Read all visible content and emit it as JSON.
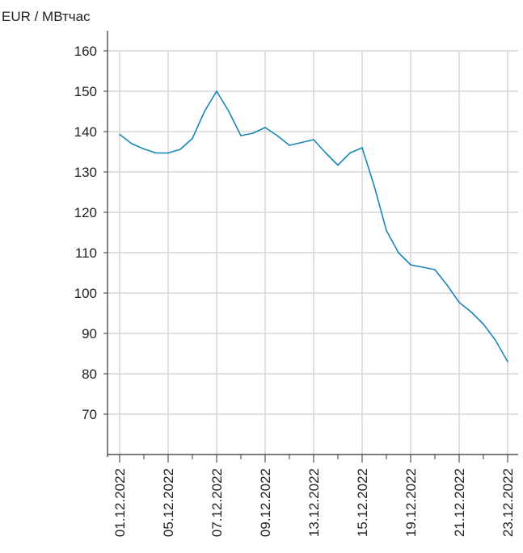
{
  "chart_data": {
    "type": "line",
    "ylabel": "EUR / МВтчас",
    "ylim": [
      60,
      160
    ],
    "yticks": [
      70,
      80,
      90,
      100,
      110,
      120,
      130,
      140,
      150,
      160
    ],
    "grid": true,
    "line_color": "#1a87b8",
    "xtick_labels": [
      "01.12.2022",
      "05.12.2022",
      "07.12.2022",
      "09.12.2022",
      "13.12.2022",
      "15.12.2022",
      "19.12.2022",
      "21.12.2022",
      "23.12.2022"
    ],
    "series": [
      {
        "values": [
          139.3,
          137.0,
          135.7,
          134.7,
          134.7,
          135.6,
          138.3,
          145.0,
          150.0,
          145.0,
          139.0,
          139.6,
          141.0,
          139.0,
          136.6,
          137.3,
          138.0,
          134.7,
          131.7,
          134.7,
          136.0,
          126.5,
          115.5,
          110.0,
          107.0,
          106.4,
          105.8,
          102.0,
          97.7,
          95.3,
          92.3,
          88.3,
          83.0
        ]
      }
    ]
  }
}
